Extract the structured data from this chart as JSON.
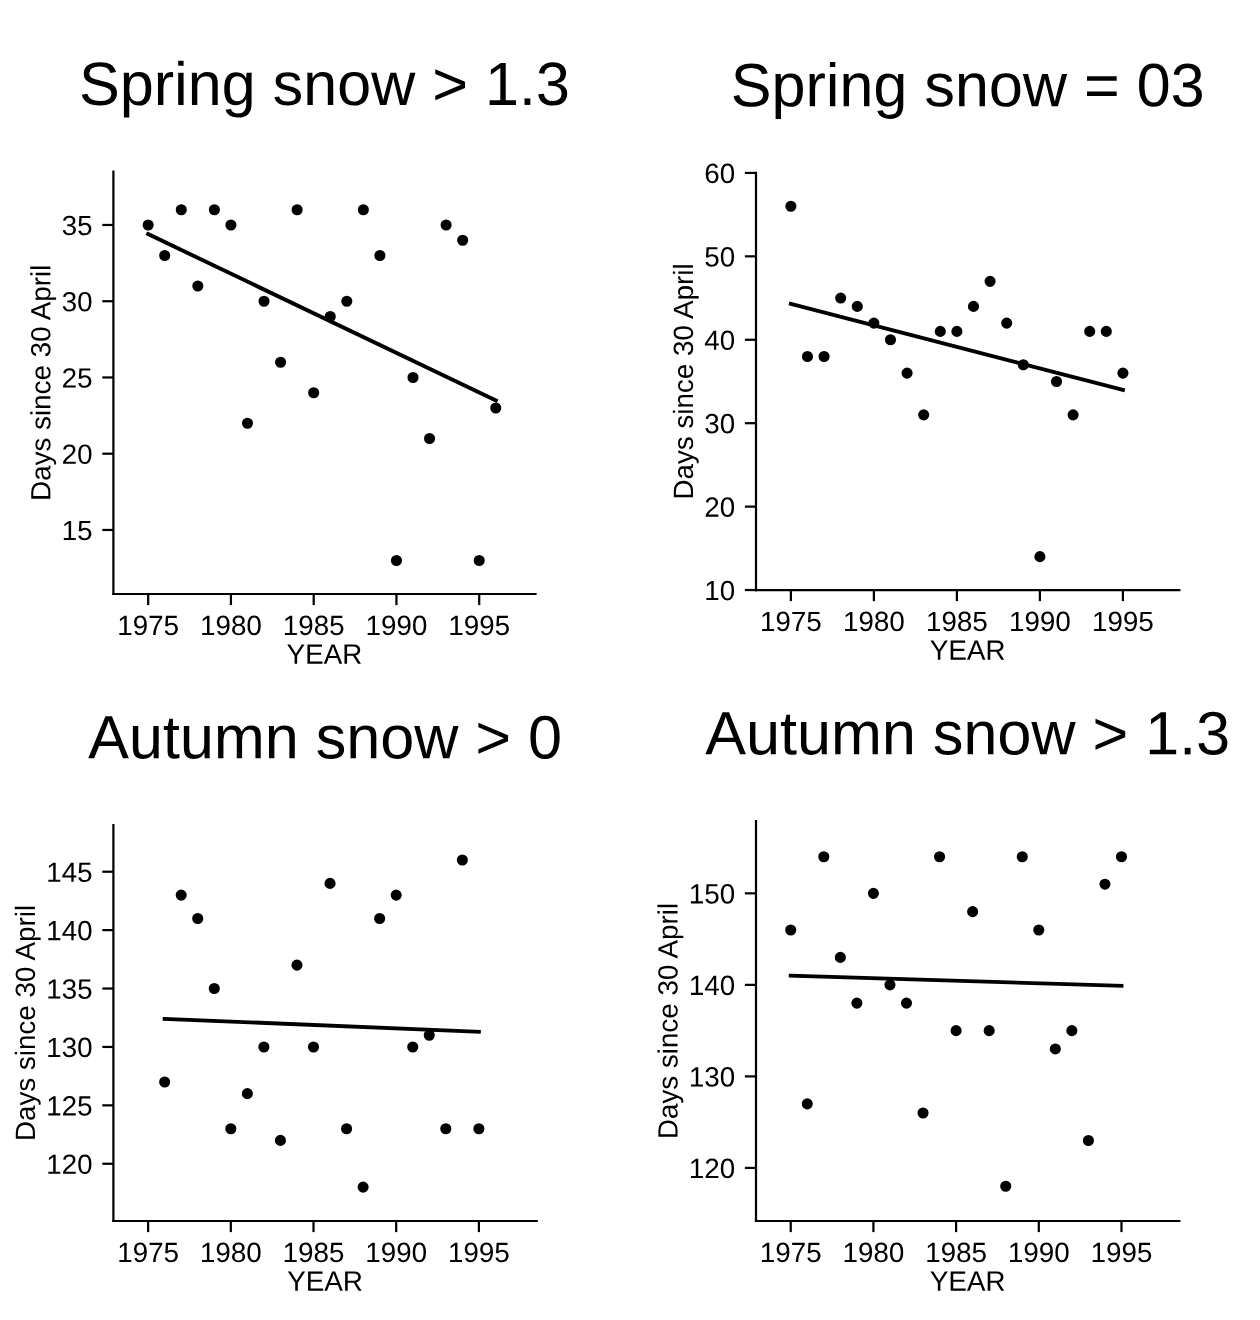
{
  "chart_data": [
    {
      "type": "scatter",
      "title": "Spring snow > 1.3",
      "xlabel": "YEAR",
      "ylabel": "Days since 30 April",
      "xlim": [
        1972.9,
        1998.4
      ],
      "xticks": [
        1975,
        1980,
        1985,
        1990,
        1995
      ],
      "ylim": [
        10.8,
        38.5
      ],
      "yticks": [
        15,
        20,
        25,
        30,
        35
      ],
      "grid": false,
      "legend": false,
      "series": [
        {
          "marker": "circle",
          "color": "#000000",
          "x": [
            1975,
            1976,
            1977,
            1978,
            1979,
            1980,
            1981,
            1982,
            1983,
            1984,
            1985,
            1986,
            1987,
            1988,
            1989,
            1990,
            1991,
            1992,
            1993,
            1994,
            1995,
            1996
          ],
          "values": [
            35,
            33,
            36,
            31,
            36,
            35,
            22,
            30,
            26,
            36,
            24,
            29,
            30,
            36,
            33,
            13,
            25,
            21,
            35,
            34,
            13,
            23
          ]
        },
        {
          "type": "line",
          "color": "#000000",
          "line_style": "solid",
          "x": [
            1975,
            1996
          ],
          "values": [
            34.4,
            23.5
          ]
        }
      ]
    },
    {
      "type": "scatter",
      "title": "Spring snow = 03",
      "xlabel": "YEAR",
      "ylabel": "Days since 30 April",
      "xlim": [
        1972.9,
        1998.4
      ],
      "xticks": [
        1975,
        1980,
        1985,
        1990,
        1995
      ],
      "ylim": [
        10,
        60
      ],
      "yticks": [
        10,
        20,
        30,
        40,
        50,
        60
      ],
      "grid": false,
      "legend": false,
      "series": [
        {
          "marker": "circle",
          "color": "#000000",
          "x": [
            1975,
            1976,
            1977,
            1978,
            1979,
            1980,
            1981,
            1982,
            1983,
            1984,
            1985,
            1986,
            1987,
            1988,
            1989,
            1990,
            1991,
            1992,
            1993,
            1994,
            1995
          ],
          "values": [
            56,
            38,
            38,
            45,
            44,
            42,
            40,
            36,
            31,
            41,
            41,
            44,
            47,
            42,
            37,
            14,
            35,
            31,
            41,
            41,
            36
          ]
        },
        {
          "type": "line",
          "color": "#000000",
          "line_style": "solid",
          "x": [
            1975,
            1995
          ],
          "values": [
            44.3,
            34
          ]
        }
      ]
    },
    {
      "type": "scatter",
      "title": "Autumn snow > 0",
      "xlabel": "YEAR",
      "ylabel": "Days since 30 April",
      "xlim": [
        1972.9,
        1998.5
      ],
      "xticks": [
        1975,
        1980,
        1985,
        1990,
        1995
      ],
      "ylim": [
        115.1,
        149
      ],
      "yticks": [
        120,
        125,
        130,
        135,
        140,
        145
      ],
      "grid": false,
      "legend": false,
      "series": [
        {
          "marker": "circle",
          "color": "#000000",
          "x": [
            1976,
            1977,
            1978,
            1979,
            1980,
            1981,
            1982,
            1983,
            1984,
            1985,
            1986,
            1987,
            1988,
            1989,
            1990,
            1991,
            1992,
            1993,
            1994,
            1995
          ],
          "values": [
            127,
            143,
            141,
            135,
            123,
            126,
            130,
            122,
            137,
            130,
            144,
            123,
            118,
            141,
            143,
            130,
            131,
            123,
            146,
            123
          ]
        },
        {
          "type": "line",
          "color": "#000000",
          "line_style": "solid",
          "x": [
            1976,
            1995
          ],
          "values": [
            132.4,
            131.3
          ]
        }
      ]
    },
    {
      "type": "scatter",
      "title": "Autumn snow > 1.3",
      "xlabel": "YEAR",
      "ylabel": "Days since 30 April",
      "xlim": [
        1972.9,
        1998.5
      ],
      "xticks": [
        1975,
        1980,
        1985,
        1990,
        1995
      ],
      "ylim": [
        114.2,
        157.9
      ],
      "yticks": [
        120,
        130,
        140,
        150
      ],
      "grid": false,
      "legend": false,
      "series": [
        {
          "marker": "circle",
          "color": "#000000",
          "x": [
            1975,
            1976,
            1977,
            1978,
            1979,
            1980,
            1981,
            1982,
            1983,
            1984,
            1985,
            1986,
            1987,
            1988,
            1989,
            1990,
            1991,
            1992,
            1993,
            1994,
            1995
          ],
          "values": [
            146,
            127,
            154,
            143,
            138,
            150,
            140,
            138,
            126,
            154,
            135,
            148,
            135,
            118,
            154,
            146,
            133,
            135,
            123,
            151,
            154
          ]
        },
        {
          "type": "line",
          "color": "#000000",
          "line_style": "solid",
          "x": [
            1975,
            1995
          ],
          "values": [
            141,
            139.9
          ]
        }
      ]
    }
  ]
}
